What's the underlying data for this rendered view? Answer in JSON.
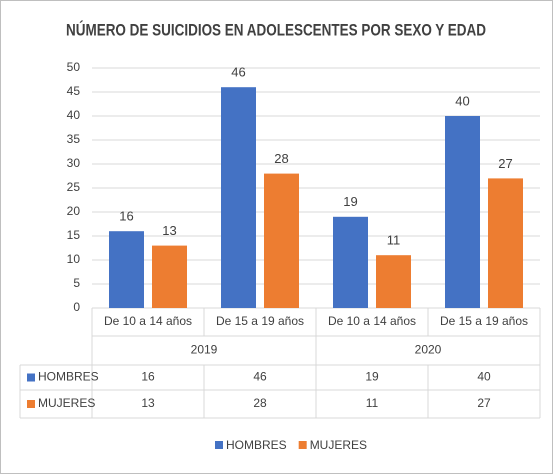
{
  "chart_data": {
    "type": "bar",
    "title": "NÚMERO DE SUICIDIOS EN ADOLESCENTES POR SEXO Y EDAD",
    "categories": [
      "De 10 a 14 años",
      "De 15 a 19 años",
      "De 10 a 14 años",
      "De 15 a 19 años"
    ],
    "category_groups": [
      "2019",
      "2020"
    ],
    "series": [
      {
        "name": "HOMBRES",
        "color": "#4472c4",
        "values": [
          16,
          46,
          19,
          40
        ]
      },
      {
        "name": "MUJERES",
        "color": "#ed7d31",
        "values": [
          13,
          28,
          11,
          27
        ]
      }
    ],
    "ylim": [
      0,
      50
    ],
    "yticks": [
      0,
      5,
      10,
      15,
      20,
      25,
      30,
      35,
      40,
      45,
      50
    ],
    "data_labels": true,
    "data_table": true,
    "legend": "bottom"
  }
}
